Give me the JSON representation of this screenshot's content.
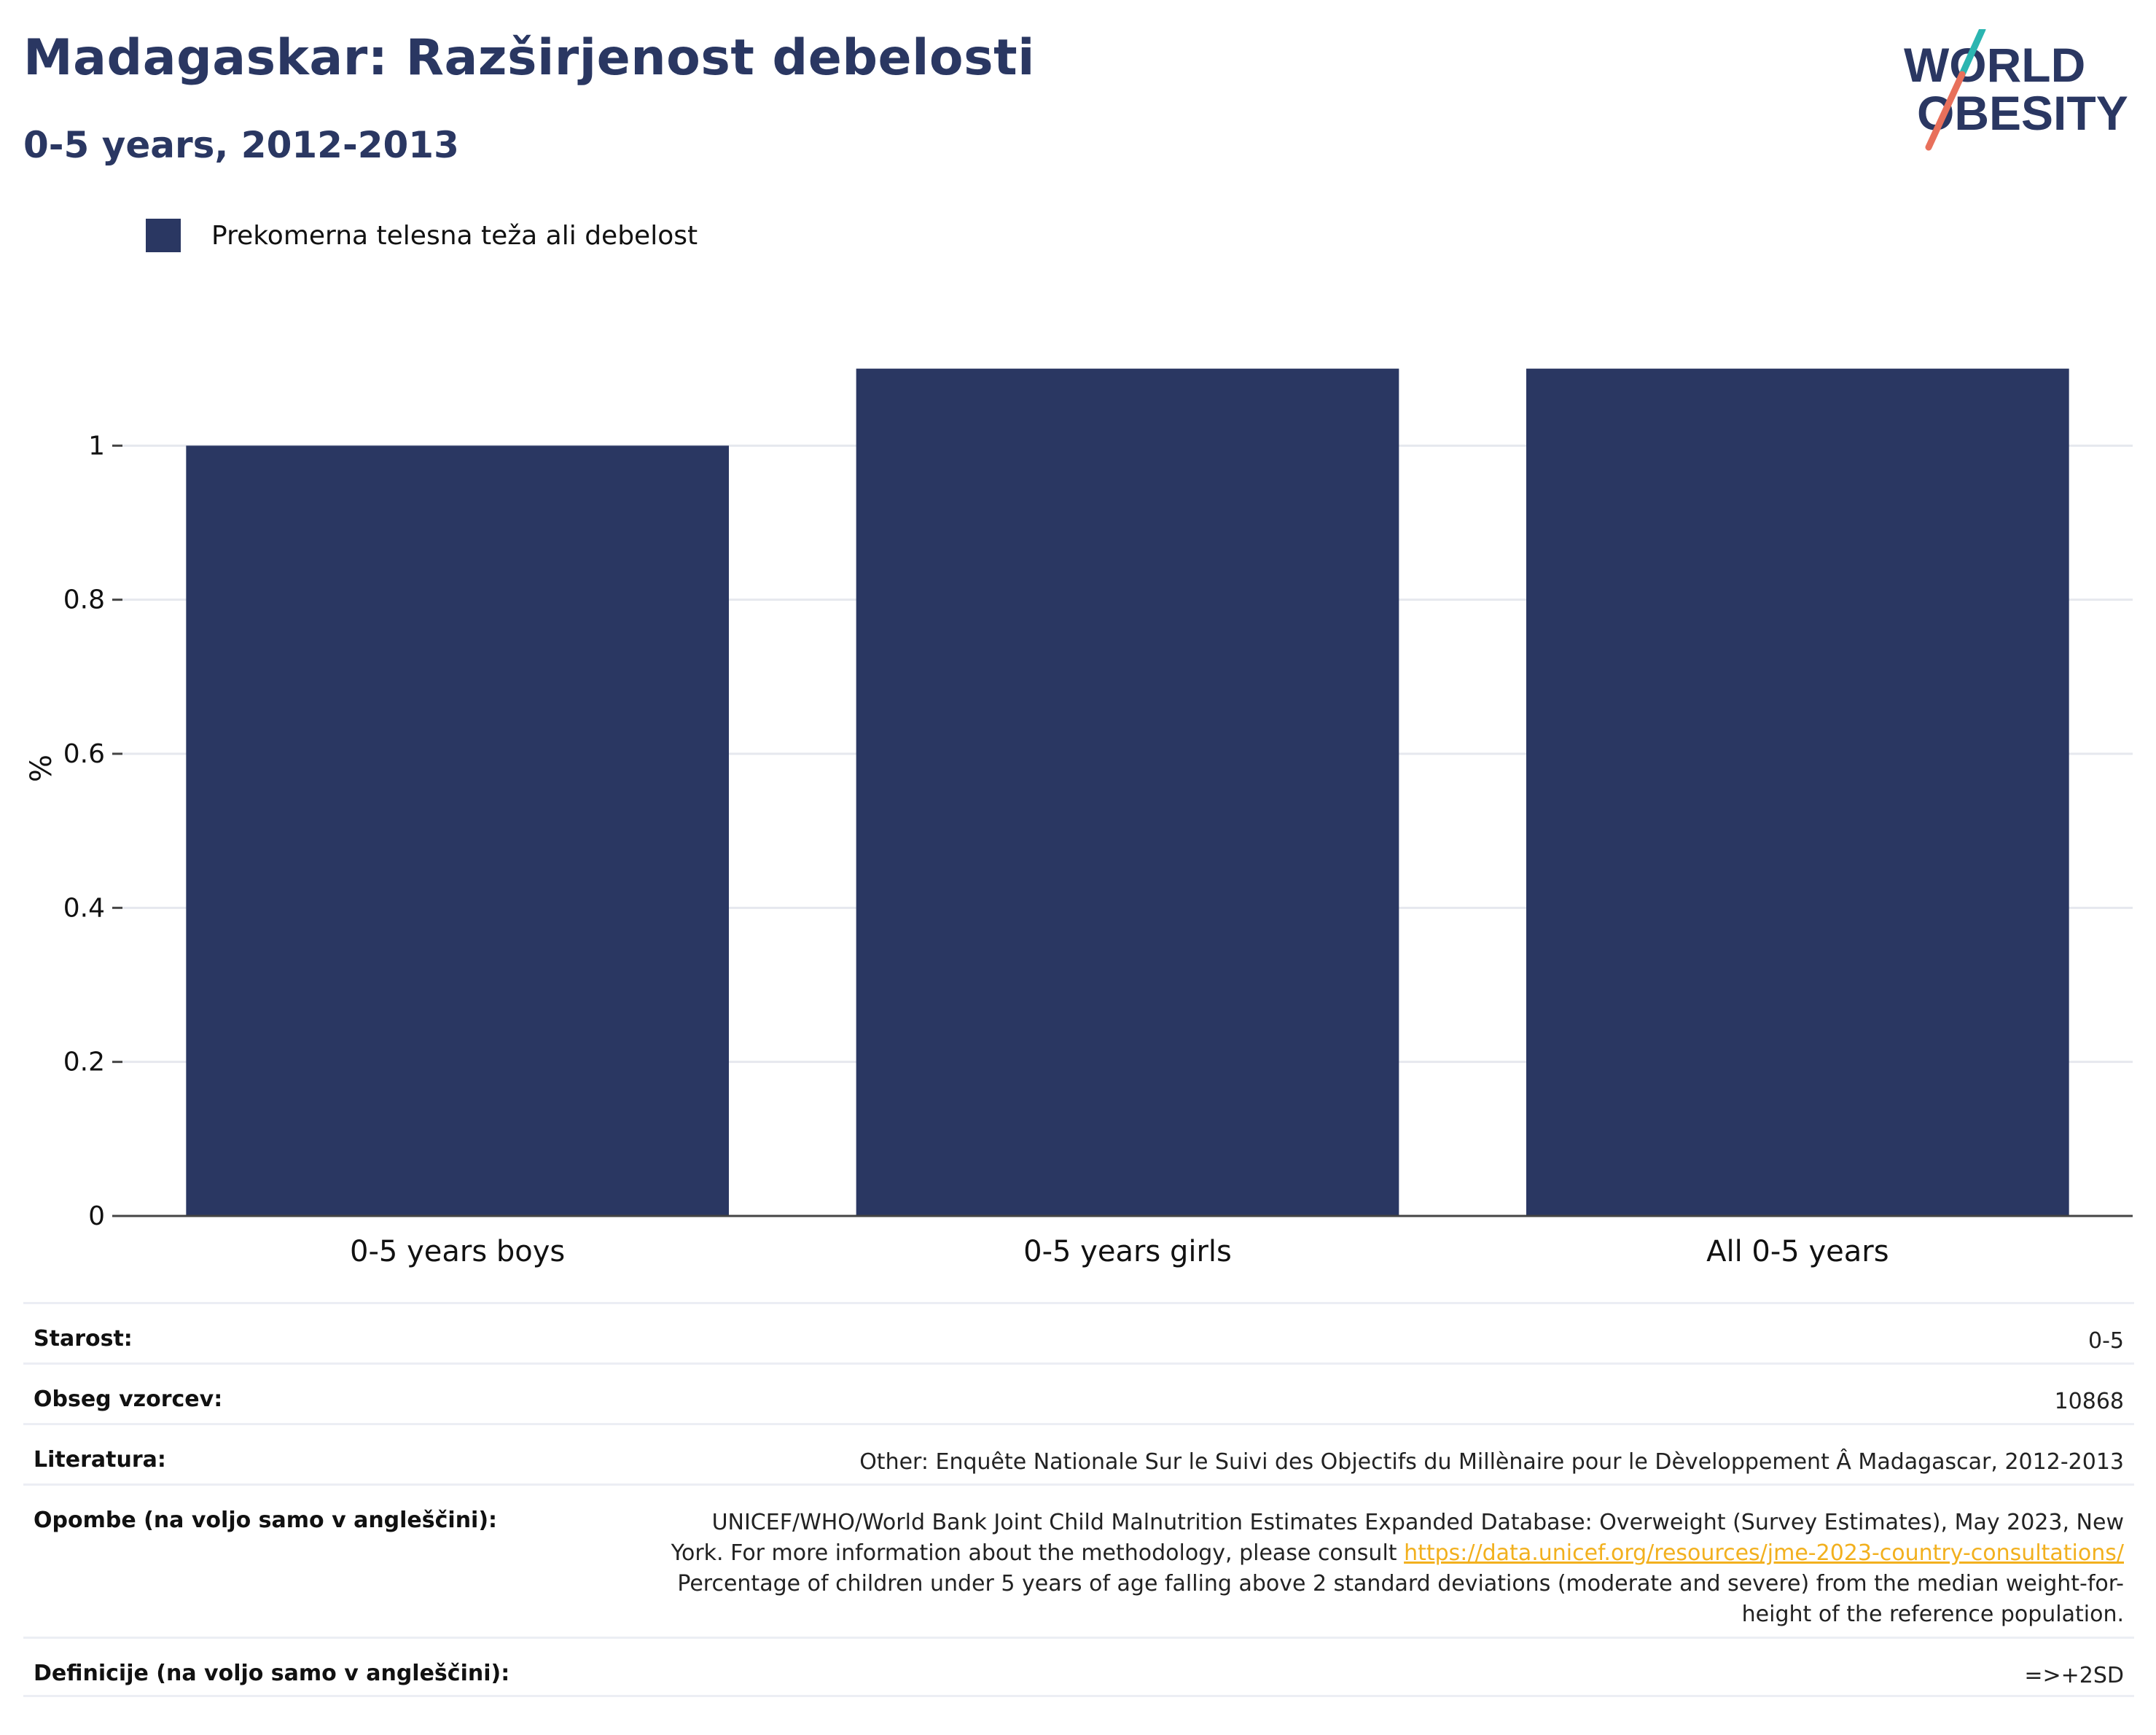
{
  "header": {
    "title": "Madagaskar: Razširjenost debelosti",
    "subtitle": "0-5 years, 2012-2013"
  },
  "logo": {
    "line1": "WORLD",
    "line2": "OBESITY",
    "accent_teal": "#2bb5b1",
    "accent_coral": "#e8705b",
    "color": "#2a3762"
  },
  "legend": {
    "label": "Prekomerna telesna teža ali debelost",
    "color": "#2a3762"
  },
  "chart_data": {
    "type": "bar",
    "categories": [
      "0-5 years boys",
      "0-5 years girls",
      "All 0-5 years"
    ],
    "series": [
      {
        "name": "Prekomerna telesna teža ali debelost",
        "values": [
          1.0,
          1.1,
          1.1
        ],
        "color": "#2a3762"
      }
    ],
    "ylabel": "%",
    "ylim": [
      0,
      1.2
    ],
    "yticks": [
      0,
      0.2,
      0.4,
      0.6,
      0.8,
      1
    ],
    "ytick_labels": [
      "0",
      "0.2",
      "0.4",
      "0.6",
      "0.8",
      "1"
    ],
    "grid": true,
    "legend_position": "top-left"
  },
  "meta": {
    "age_key": "Starost:",
    "age_value": "0-5",
    "sample_key": "Obseg vzorcev:",
    "sample_value": "10868",
    "lit_key": "Literatura:",
    "lit_value": "Other: Enquête Nationale Sur le Suivi des Objectifs du Millènaire pour le Dèveloppement Â Madagascar, 2012-2013",
    "notes_key": "Opombe (na voljo samo v angleščini):",
    "notes_line1": "UNICEF/WHO/World Bank Joint Child Malnutrition Estimates Expanded Database: Overweight (Survey Estimates), May 2023, New",
    "notes_line2_text": "York. For more information about the methodology, please consult ",
    "notes_link": "https://data.unicef.org/resources/jme-2023-country-consultations/",
    "notes_line3": "Percentage of children under 5 years of age falling above 2 standard deviations (moderate and severe) from the median weight-for-",
    "notes_line4": "height of the reference population.",
    "def_key": "Definicije (na voljo samo v angleščini):",
    "def_value": "=>+2SD"
  }
}
